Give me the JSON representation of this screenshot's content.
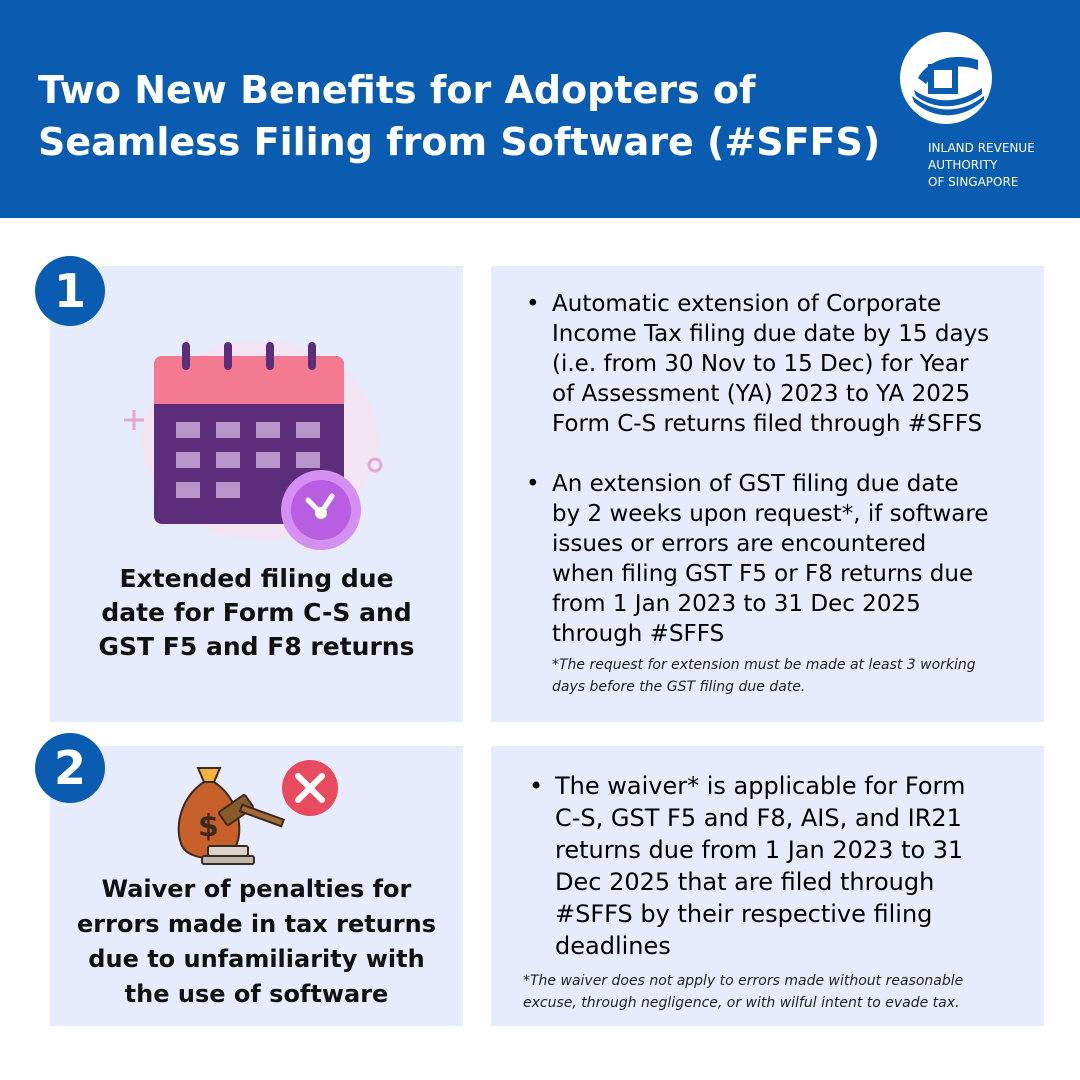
{
  "header": {
    "title_line1": "Two New Benefits for Adopters of",
    "title_line2": "Seamless Filing from Software (#SFFS)",
    "logo_line1": "INLAND REVENUE",
    "logo_line2": "AUTHORITY",
    "logo_line3": "OF SINGAPORE"
  },
  "benefit1": {
    "number": "1",
    "icon": "calendar-clock-icon",
    "caption_line1": "Extended filing due",
    "caption_line2": "date for Form C-S and",
    "caption_line3": "GST F5 and F8 returns",
    "bullet1": [
      "Automatic extension of Corporate",
      "Income Tax filing due date by 15 days",
      "(i.e. from 30 Nov to 15 Dec) for Year",
      "of Assessment (YA) 2023 to YA 2025",
      "Form C-S returns filed through #SFFS"
    ],
    "bullet2": [
      "An extension of GST filing due date",
      "by 2 weeks upon request*, if software",
      "issues or errors are encountered",
      "when filing GST F5 or F8 returns due",
      "from 1 Jan 2023 to 31 Dec 2025",
      "through #SFFS"
    ],
    "note_line1": "*The request for extension must be made at least 3 working",
    "note_line2": "days before the GST filing due date."
  },
  "benefit2": {
    "number": "2",
    "icon": "money-bag-gavel-icon",
    "caption_line1": "Waiver of penalties for",
    "caption_line2": "errors made in tax returns",
    "caption_line3": "due to unfamiliarity with",
    "caption_line4": "the use of software",
    "bullet1": [
      "The waiver* is applicable for Form",
      "C-S, GST F5 and F8, AIS, and IR21",
      "returns due from 1 Jan 2023 to 31",
      "Dec 2025 that are filed through",
      "#SFFS by their respective filing",
      "deadlines"
    ],
    "note_line1": "*The waiver does not apply to errors made without reasonable",
    "note_line2": "excuse, through negligence, or with wilful intent to evade tax."
  },
  "colors": {
    "brand_blue": "#0a5cb0",
    "panel_bg": "#e6ecfb",
    "calendar_pink": "#f47a92",
    "calendar_purple": "#5b2d7a",
    "clock_purple": "#b85ee0",
    "cross_red": "#e84a5f",
    "bag_brown": "#c8602b"
  }
}
